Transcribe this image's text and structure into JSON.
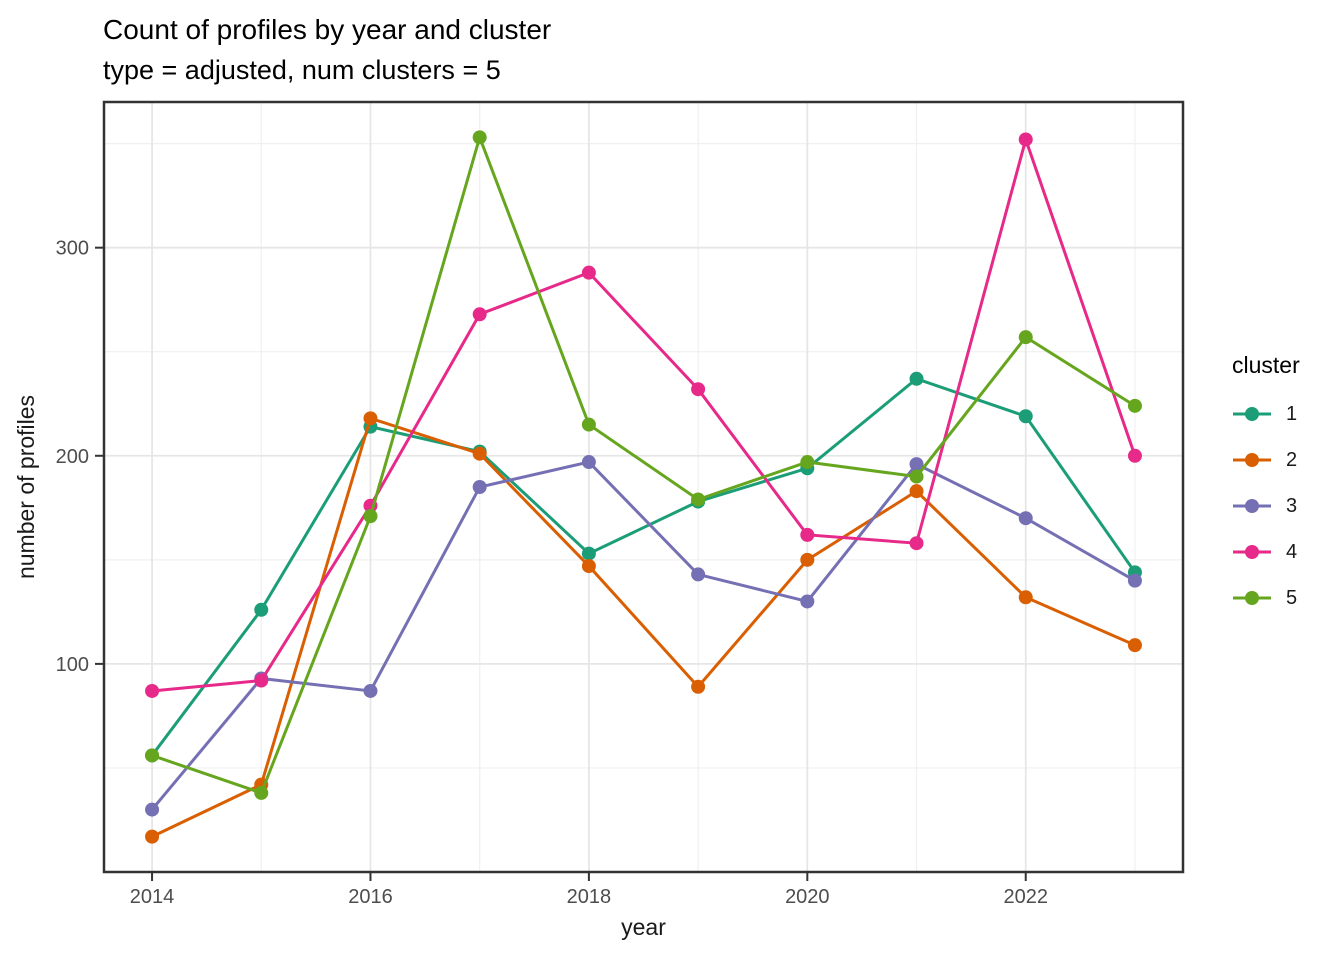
{
  "title": "Count of profiles by year and cluster",
  "subtitle": "type = adjusted, num clusters = 5",
  "axes": {
    "x_label": "year",
    "y_label": "number of profiles"
  },
  "legend": {
    "title": "cluster",
    "items": [
      {
        "label": "1",
        "color": "#1B9E77"
      },
      {
        "label": "2",
        "color": "#D95F02"
      },
      {
        "label": "3",
        "color": "#7570B3"
      },
      {
        "label": "4",
        "color": "#E7298A"
      },
      {
        "label": "5",
        "color": "#66A61E"
      }
    ]
  },
  "chart_data": {
    "type": "line",
    "title": "Count of profiles by year and cluster",
    "subtitle": "type = adjusted, num clusters = 5",
    "xlabel": "year",
    "ylabel": "number of profiles",
    "x": [
      2014,
      2015,
      2016,
      2017,
      2018,
      2019,
      2020,
      2021,
      2022,
      2023
    ],
    "series": [
      {
        "name": "1",
        "color": "#1B9E77",
        "values": [
          56,
          126,
          214,
          202,
          153,
          178,
          194,
          237,
          219,
          144
        ]
      },
      {
        "name": "2",
        "color": "#D95F02",
        "values": [
          17,
          42,
          218,
          201,
          147,
          89,
          150,
          183,
          132,
          109
        ]
      },
      {
        "name": "3",
        "color": "#7570B3",
        "values": [
          30,
          93,
          87,
          185,
          197,
          143,
          130,
          196,
          170,
          140
        ]
      },
      {
        "name": "4",
        "color": "#E7298A",
        "values": [
          87,
          92,
          176,
          268,
          288,
          232,
          162,
          158,
          352,
          200
        ]
      },
      {
        "name": "5",
        "color": "#66A61E",
        "values": [
          56,
          38,
          171,
          353,
          215,
          179,
          197,
          190,
          257,
          224
        ]
      }
    ],
    "x_ticks": [
      2014,
      2016,
      2018,
      2020,
      2022
    ],
    "y_ticks": [
      100,
      200,
      300
    ],
    "x_minor": [
      2015,
      2017,
      2019,
      2021,
      2023
    ],
    "y_minor": [
      50,
      150,
      250,
      350
    ],
    "xlim": [
      2013.56,
      2023.44
    ],
    "ylim": [
      0,
      370
    ],
    "grid": true,
    "legend_position": "right",
    "legend_title": "cluster"
  }
}
